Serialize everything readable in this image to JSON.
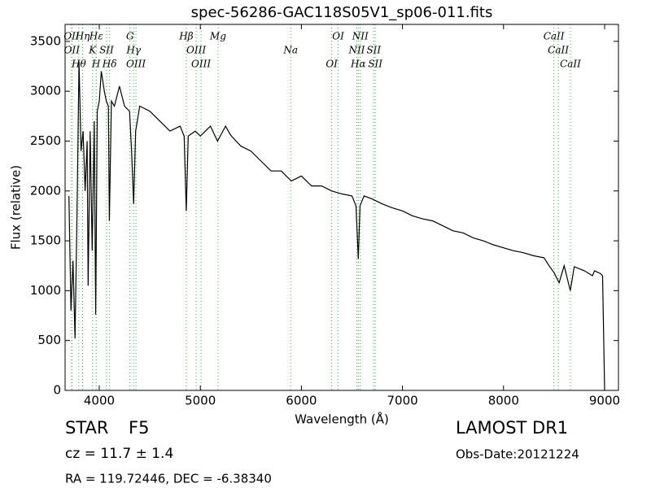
{
  "chart_data": {
    "type": "line",
    "title": "spec-56286-GAC118S05V1_sp06-011.fits",
    "xlabel": "Wavelength (Å)",
    "ylabel": "Flux (relative)",
    "xlim": [
      3662,
      9137
    ],
    "ylim": [
      0,
      3670
    ],
    "xticks": [
      4000,
      5000,
      6000,
      7000,
      8000,
      9000
    ],
    "yticks": [
      0,
      500,
      1000,
      1500,
      2000,
      2500,
      3000,
      3500
    ],
    "grid": false,
    "series": [
      {
        "color": "#000000",
        "x": [
          3700,
          3720,
          3740,
          3760,
          3780,
          3800,
          3820,
          3840,
          3860,
          3880,
          3890,
          3910,
          3930,
          3950,
          3965,
          3980,
          4000,
          4020,
          4050,
          4070,
          4090,
          4100,
          4120,
          4150,
          4200,
          4250,
          4300,
          4320,
          4340,
          4360,
          4400,
          4500,
          4600,
          4700,
          4800,
          4840,
          4861,
          4880,
          4950,
          5000,
          5100,
          5170,
          5250,
          5300,
          5400,
          5500,
          5600,
          5700,
          5800,
          5900,
          6000,
          6100,
          6200,
          6300,
          6400,
          6500,
          6540,
          6563,
          6580,
          6620,
          6700,
          6800,
          6900,
          7000,
          7100,
          7200,
          7300,
          7400,
          7500,
          7600,
          7700,
          7800,
          7900,
          8000,
          8100,
          8200,
          8300,
          8400,
          8450,
          8500,
          8550,
          8600,
          8660,
          8700,
          8800,
          8880,
          8900,
          8960,
          8980,
          9000
        ],
        "values": [
          1950,
          800,
          1300,
          520,
          1800,
          3300,
          2400,
          2600,
          2000,
          2500,
          1050,
          2600,
          1400,
          2700,
          760,
          2800,
          2900,
          3200,
          3000,
          2900,
          2850,
          1700,
          2900,
          2850,
          3050,
          2850,
          2800,
          2400,
          1870,
          2600,
          2850,
          2800,
          2700,
          2600,
          2650,
          2550,
          1800,
          2550,
          2600,
          2550,
          2650,
          2500,
          2650,
          2560,
          2450,
          2400,
          2300,
          2200,
          2200,
          2100,
          2150,
          2050,
          2050,
          2000,
          1970,
          1950,
          1850,
          1320,
          1850,
          1950,
          1920,
          1870,
          1830,
          1800,
          1750,
          1720,
          1700,
          1650,
          1600,
          1580,
          1530,
          1500,
          1460,
          1430,
          1400,
          1380,
          1350,
          1330,
          1250,
          1180,
          1080,
          1250,
          1000,
          1240,
          1200,
          1150,
          1200,
          1170,
          1150,
          0
        ]
      }
    ],
    "line_color": "#3cb043",
    "spectral_lines": [
      {
        "label": "OII",
        "wavelength": 3726
      },
      {
        "label": "OII",
        "wavelength": 3729
      },
      {
        "label": "Hθ",
        "wavelength": 3798
      },
      {
        "label": "Hη",
        "wavelength": 3835
      },
      {
        "label": "K",
        "wavelength": 3934
      },
      {
        "label": "H",
        "wavelength": 3969
      },
      {
        "label": "Hε",
        "wavelength": 3970
      },
      {
        "label": "SII",
        "wavelength": 4072
      },
      {
        "label": "Hδ",
        "wavelength": 4102
      },
      {
        "label": "G",
        "wavelength": 4304
      },
      {
        "label": "Hγ",
        "wavelength": 4340
      },
      {
        "label": "OIII",
        "wavelength": 4363
      },
      {
        "label": "Hβ",
        "wavelength": 4861
      },
      {
        "label": "OIII",
        "wavelength": 4959
      },
      {
        "label": "OIII",
        "wavelength": 5007
      },
      {
        "label": "Mg",
        "wavelength": 5175
      },
      {
        "label": "Na",
        "wavelength": 5894
      },
      {
        "label": "OI",
        "wavelength": 6300
      },
      {
        "label": "OI",
        "wavelength": 6364
      },
      {
        "label": "NII",
        "wavelength": 6548
      },
      {
        "label": "Hα",
        "wavelength": 6563
      },
      {
        "label": "NII",
        "wavelength": 6583
      },
      {
        "label": "SII",
        "wavelength": 6716
      },
      {
        "label": "SII",
        "wavelength": 6731
      },
      {
        "label": "CaII",
        "wavelength": 8498
      },
      {
        "label": "CaII",
        "wavelength": 8542
      },
      {
        "label": "CaII",
        "wavelength": 8662
      }
    ]
  },
  "footer": {
    "object_class": "STAR",
    "subclass": "F5",
    "redshift": "cz = 11.7 ± 1.4",
    "coordinates": "RA = 119.72446, DEC = -6.38340",
    "survey": "LAMOST DR1",
    "obs_date": "Obs-Date:20121224"
  }
}
